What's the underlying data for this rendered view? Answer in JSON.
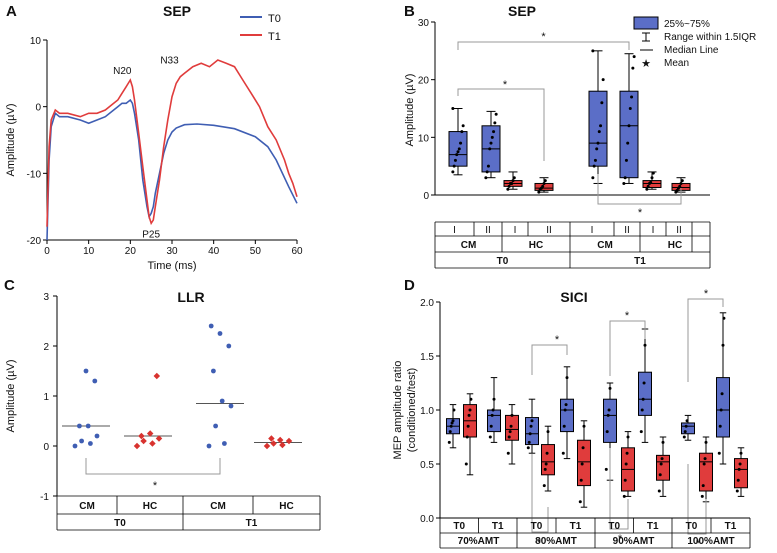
{
  "chart_data": [
    {
      "panel": "A",
      "type": "line",
      "title": "SEP",
      "xlabel": "Time (ms)",
      "ylabel": "Amplitude (µV)",
      "xlim": [
        0,
        60
      ],
      "ylim": [
        -20,
        10
      ],
      "xticks": [
        "0",
        "10",
        "20",
        "30",
        "40",
        "50",
        "60"
      ],
      "yticks": [
        "-20",
        "-10",
        "0",
        "10"
      ],
      "series": [
        {
          "name": "T0",
          "color": "#3f5eb3",
          "x": [
            0,
            0.5,
            1,
            2,
            3,
            5,
            8,
            10,
            12,
            14,
            16,
            17,
            18,
            19,
            20,
            20.5,
            21,
            22,
            23,
            24,
            24.5,
            25,
            25.5,
            26,
            27,
            28,
            29,
            30,
            31,
            33,
            36,
            40,
            45,
            50,
            53,
            55,
            58,
            60
          ],
          "y": [
            -20,
            -8,
            -3,
            -1,
            -1.5,
            -1.5,
            -2,
            -2.5,
            -2,
            -1.5,
            -0.5,
            0,
            0.5,
            0.5,
            1,
            0.5,
            -1,
            -5,
            -11,
            -15,
            -16.5,
            -16,
            -15,
            -13,
            -10,
            -7,
            -5,
            -3.8,
            -3.2,
            -2.7,
            -2.6,
            -2.8,
            -3.3,
            -4.5,
            -6,
            -8,
            -12,
            -14.5
          ]
        },
        {
          "name": "T1",
          "color": "#e03c3c",
          "x": [
            0,
            0.5,
            1,
            2,
            3,
            5,
            8,
            10,
            12,
            14,
            16,
            17,
            18,
            19,
            20,
            20.5,
            21,
            22,
            23,
            24,
            24.5,
            25,
            25.5,
            26,
            27,
            28,
            29,
            30,
            31,
            32,
            33,
            35,
            37,
            39,
            41,
            43,
            45,
            47,
            49,
            51,
            53,
            55,
            57,
            58,
            59,
            60
          ],
          "y": [
            -18,
            -6,
            -2,
            -0.5,
            -1,
            -1,
            -1.5,
            -1,
            -1,
            -0.5,
            0.5,
            1,
            2,
            3,
            4,
            3,
            1,
            -4,
            -9,
            -14,
            -16.5,
            -17.5,
            -17,
            -15,
            -11,
            -6,
            -2,
            1.5,
            3.5,
            4.5,
            5,
            6,
            6.5,
            6,
            7,
            6.5,
            6,
            4,
            2,
            0,
            -3,
            -5,
            -8,
            -10,
            -11.5,
            -13.5
          ]
        }
      ],
      "annotations": [
        "N20",
        "N33",
        "P25"
      ]
    },
    {
      "panel": "B",
      "type": "box",
      "title": "SEP",
      "ylabel": "Amplitude (µV)",
      "ylim": [
        0,
        30
      ],
      "yticks": [
        "0",
        "10",
        "20",
        "30"
      ],
      "legend": [
        "25%~75%",
        "Range within 1.5IQR",
        "Median Line",
        "Mean"
      ],
      "boxes": [
        {
          "group": "T0",
          "subject": "CM",
          "session": "I",
          "color": "#5b6ec7",
          "whisker_low": 3.5,
          "q1": 5,
          "median": 7,
          "q3": 11,
          "whisker_high": 15,
          "mean": 8,
          "points": [
            4,
            5,
            6,
            7,
            7.5,
            8,
            9,
            11,
            12,
            15
          ]
        },
        {
          "group": "T0",
          "subject": "CM",
          "session": "II",
          "color": "#5b6ec7",
          "whisker_low": 3,
          "q1": 4,
          "median": 8,
          "q3": 12,
          "whisker_high": 14.5,
          "mean": 8.5,
          "points": [
            3,
            4,
            5,
            8,
            9,
            10,
            11,
            12.5,
            14
          ]
        },
        {
          "group": "T0",
          "subject": "HC",
          "session": "I",
          "color": "#e03c3c",
          "whisker_low": 1,
          "q1": 1.5,
          "median": 2,
          "q3": 2.5,
          "whisker_high": 4,
          "mean": 2,
          "points": [
            1,
            1.5,
            2,
            2,
            2.5,
            3
          ]
        },
        {
          "group": "T0",
          "subject": "HC",
          "session": "II",
          "color": "#e03c3c",
          "whisker_low": 0.5,
          "q1": 0.8,
          "median": 1.2,
          "q3": 2,
          "whisker_high": 3,
          "mean": 1.5,
          "points": [
            0.5,
            1,
            1.2,
            1.5,
            2,
            2.5
          ]
        },
        {
          "group": "T1",
          "subject": "CM",
          "session": "I",
          "color": "#5b6ec7",
          "whisker_low": 2,
          "q1": 5,
          "median": 9,
          "q3": 18,
          "whisker_high": 25,
          "mean": 11,
          "points": [
            3,
            5,
            6,
            8,
            9,
            11,
            12,
            16,
            20,
            25
          ]
        },
        {
          "group": "T1",
          "subject": "CM",
          "session": "II",
          "color": "#5b6ec7",
          "whisker_low": 2,
          "q1": 3,
          "median": 12,
          "q3": 18,
          "whisker_high": 24.5,
          "mean": 11.5,
          "points": [
            2,
            3,
            6,
            9,
            12,
            15,
            17,
            22,
            24
          ]
        },
        {
          "group": "T1",
          "subject": "HC",
          "session": "I",
          "color": "#e03c3c",
          "whisker_low": 1,
          "q1": 1.3,
          "median": 2,
          "q3": 2.5,
          "whisker_high": 4,
          "mean": 2,
          "points": [
            1,
            1.5,
            2,
            2.2,
            3,
            3.8
          ]
        },
        {
          "group": "T1",
          "subject": "HC",
          "session": "II",
          "color": "#e03c3c",
          "whisker_low": 0.5,
          "q1": 0.8,
          "median": 1.3,
          "q3": 2,
          "whisker_high": 3,
          "mean": 1.5,
          "points": [
            0.5,
            0.8,
            1.2,
            1.5,
            2,
            2.5
          ]
        }
      ],
      "significance": [
        "*",
        "*",
        "*"
      ],
      "table_rows": [
        [
          "I",
          "II",
          "I",
          "II",
          "I",
          "II",
          "I",
          "II"
        ],
        [
          "CM",
          "HC",
          "CM",
          "HC"
        ],
        [
          "T0",
          "T1"
        ]
      ]
    },
    {
      "panel": "C",
      "type": "scatter",
      "title": "LLR",
      "ylabel": "Amplitude (µV)",
      "ylim": [
        -1,
        3
      ],
      "yticks": [
        "-1",
        "0",
        "1",
        "2",
        "3"
      ],
      "groups": [
        {
          "time": "T0",
          "subject": "CM",
          "color": "#3f5eb3",
          "median": 0.4,
          "points": [
            0,
            0.05,
            0.1,
            0.2,
            0.4,
            0.4,
            1.3,
            1.5
          ]
        },
        {
          "time": "T0",
          "subject": "HC",
          "color": "#d8332f",
          "median": 0.2,
          "points": [
            0,
            0.05,
            0.1,
            0.15,
            0.25,
            0.2,
            1.4
          ]
        },
        {
          "time": "T1",
          "subject": "CM",
          "color": "#3f5eb3",
          "median": 0.85,
          "points": [
            0,
            0.05,
            0.4,
            0.8,
            0.9,
            1.5,
            2.0,
            2.25,
            2.4
          ]
        },
        {
          "time": "T1",
          "subject": "HC",
          "color": "#d8332f",
          "median": 0.07,
          "points": [
            0,
            0.02,
            0.05,
            0.1,
            0.12,
            0.15
          ]
        }
      ],
      "significance": "*",
      "table_rows": [
        [
          "CM",
          "HC",
          "CM",
          "HC"
        ],
        [
          "T0",
          "T1"
        ]
      ]
    },
    {
      "panel": "D",
      "type": "box",
      "title": "SICI",
      "ylabel": "MEP amplitude ratio (conditioned/test)",
      "ylabel_line1": "MEP amplitude ratio",
      "ylabel_line2": "(conditioned/test)",
      "ylim": [
        0,
        2
      ],
      "yticks": [
        "0.0",
        "0.5",
        "1.0",
        "1.5",
        "2.0"
      ],
      "intensities": [
        "70%AMT",
        "80%AMT",
        "90%AMT",
        "100%AMT"
      ],
      "times": [
        "T0",
        "T1"
      ],
      "boxes": [
        {
          "intensity": "70%AMT",
          "time": "T0",
          "subject": "CM",
          "color": "#5b6ec7",
          "whisker_low": 0.65,
          "q1": 0.78,
          "median": 0.85,
          "q3": 0.92,
          "whisker_high": 1.05,
          "mean": 0.85,
          "points": [
            0.7,
            0.8,
            0.85,
            0.88,
            0.9,
            1.0
          ]
        },
        {
          "intensity": "70%AMT",
          "time": "T0",
          "subject": "HC",
          "color": "#e03c3c",
          "whisker_low": 0.4,
          "q1": 0.75,
          "median": 0.9,
          "q3": 1.05,
          "whisker_high": 1.15,
          "mean": 0.9,
          "points": [
            0.5,
            0.75,
            0.85,
            0.95,
            1.0,
            1.1
          ]
        },
        {
          "intensity": "70%AMT",
          "time": "T1",
          "subject": "CM",
          "color": "#5b6ec7",
          "whisker_low": 0.7,
          "q1": 0.8,
          "median": 0.95,
          "q3": 1.0,
          "whisker_high": 1.3,
          "mean": 0.95,
          "points": [
            0.75,
            0.85,
            0.95,
            1.0,
            1.1
          ]
        },
        {
          "intensity": "70%AMT",
          "time": "T1",
          "subject": "HC",
          "color": "#e03c3c",
          "whisker_low": 0.5,
          "q1": 0.72,
          "median": 0.82,
          "q3": 0.95,
          "whisker_high": 1.05,
          "mean": 0.82,
          "points": [
            0.6,
            0.75,
            0.8,
            0.85,
            0.95
          ]
        },
        {
          "intensity": "80%AMT",
          "time": "T0",
          "subject": "CM",
          "color": "#5b6ec7",
          "whisker_low": 0.6,
          "q1": 0.68,
          "median": 0.78,
          "q3": 0.93,
          "whisker_high": 1.1,
          "mean": 0.8,
          "points": [
            0.65,
            0.7,
            0.78,
            0.85,
            0.9
          ]
        },
        {
          "intensity": "80%AMT",
          "time": "T0",
          "subject": "HC",
          "color": "#e03c3c",
          "whisker_low": 0.25,
          "q1": 0.4,
          "median": 0.52,
          "q3": 0.68,
          "whisker_high": 0.85,
          "mean": 0.55,
          "points": [
            0.3,
            0.45,
            0.5,
            0.6,
            0.8
          ]
        },
        {
          "intensity": "80%AMT",
          "time": "T1",
          "subject": "CM",
          "color": "#5b6ec7",
          "whisker_low": 0.55,
          "q1": 0.8,
          "median": 1.0,
          "q3": 1.1,
          "whisker_high": 1.4,
          "mean": 1.0,
          "points": [
            0.6,
            0.85,
            1.0,
            1.05,
            1.3
          ]
        },
        {
          "intensity": "80%AMT",
          "time": "T1",
          "subject": "HC",
          "color": "#e03c3c",
          "whisker_low": 0.1,
          "q1": 0.3,
          "median": 0.52,
          "q3": 0.72,
          "whisker_high": 0.9,
          "mean": 0.52,
          "points": [
            0.15,
            0.35,
            0.5,
            0.65,
            0.85
          ]
        },
        {
          "intensity": "90%AMT",
          "time": "T0",
          "subject": "CM",
          "color": "#5b6ec7",
          "whisker_low": 0.35,
          "q1": 0.7,
          "median": 0.95,
          "q3": 1.1,
          "whisker_high": 1.25,
          "mean": 0.9,
          "points": [
            0.45,
            0.8,
            0.95,
            1.0,
            1.2
          ]
        },
        {
          "intensity": "90%AMT",
          "time": "T0",
          "subject": "HC",
          "color": "#e03c3c",
          "whisker_low": 0.2,
          "q1": 0.25,
          "median": 0.45,
          "q3": 0.65,
          "whisker_high": 0.8,
          "mean": 0.45,
          "points": [
            0.2,
            0.35,
            0.5,
            0.6,
            0.75
          ]
        },
        {
          "intensity": "90%AMT",
          "time": "T1",
          "subject": "CM",
          "color": "#5b6ec7",
          "whisker_low": 0.7,
          "q1": 0.95,
          "median": 1.1,
          "q3": 1.35,
          "whisker_high": 1.75,
          "mean": 1.15,
          "points": [
            0.8,
            1.0,
            1.1,
            1.25,
            1.6
          ]
        },
        {
          "intensity": "90%AMT",
          "time": "T1",
          "subject": "HC",
          "color": "#e03c3c",
          "whisker_low": 0.2,
          "q1": 0.35,
          "median": 0.52,
          "q3": 0.58,
          "whisker_high": 0.75,
          "mean": 0.5,
          "points": [
            0.25,
            0.4,
            0.5,
            0.55,
            0.7
          ]
        },
        {
          "intensity": "100%AMT",
          "time": "T0",
          "subject": "CM",
          "color": "#5b6ec7",
          "whisker_low": 0.72,
          "q1": 0.78,
          "median": 0.85,
          "q3": 0.88,
          "whisker_high": 0.95,
          "mean": 0.84,
          "points": [
            0.75,
            0.8,
            0.85,
            0.9
          ]
        },
        {
          "intensity": "100%AMT",
          "time": "T0",
          "subject": "HC",
          "color": "#e03c3c",
          "whisker_low": 0.15,
          "q1": 0.25,
          "median": 0.52,
          "q3": 0.6,
          "whisker_high": 0.75,
          "mean": 0.45,
          "points": [
            0.2,
            0.3,
            0.5,
            0.55,
            0.7
          ]
        },
        {
          "intensity": "100%AMT",
          "time": "T1",
          "subject": "CM",
          "color": "#5b6ec7",
          "whisker_low": 0.5,
          "q1": 0.75,
          "median": 1.0,
          "q3": 1.3,
          "whisker_high": 1.9,
          "mean": 1.0,
          "points": [
            0.6,
            0.85,
            1.0,
            1.15,
            1.6,
            1.85
          ]
        },
        {
          "intensity": "100%AMT",
          "time": "T1",
          "subject": "HC",
          "color": "#e03c3c",
          "whisker_low": 0.2,
          "q1": 0.28,
          "median": 0.45,
          "q3": 0.55,
          "whisker_high": 0.65,
          "mean": 0.42,
          "points": [
            0.25,
            0.35,
            0.45,
            0.5,
            0.6
          ]
        }
      ],
      "significance": [
        "*",
        "*",
        "*",
        "*",
        "*",
        "*",
        "*"
      ]
    }
  ]
}
